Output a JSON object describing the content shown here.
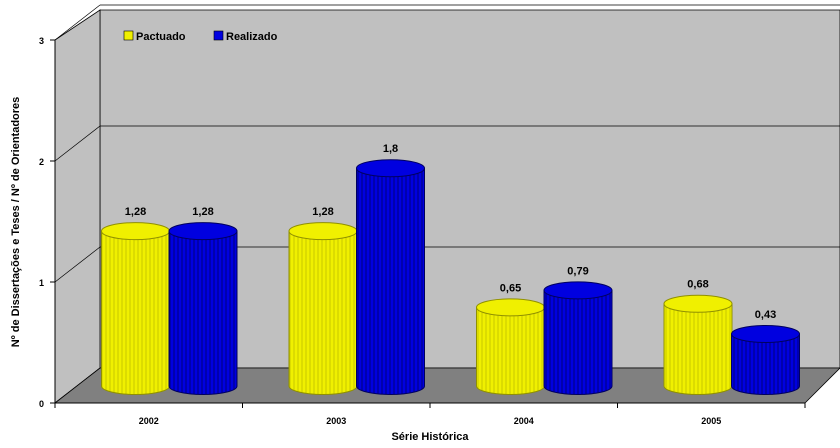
{
  "chart_data": {
    "type": "bar",
    "style": "3d-cylinder",
    "categories": [
      "2002",
      "2003",
      "2004",
      "2005"
    ],
    "series": [
      {
        "name": "Pactuado",
        "values": [
          1.28,
          1.28,
          0.65,
          0.68
        ],
        "labels": [
          "1,28",
          "1,28",
          "0,65",
          "0,68"
        ],
        "color": "#f0f000"
      },
      {
        "name": "Realizado",
        "values": [
          1.28,
          1.8,
          0.79,
          0.43
        ],
        "labels": [
          "1,28",
          "1,8",
          "0,79",
          "0,43"
        ],
        "color": "#0000e0"
      }
    ],
    "xlabel": "Série Histórica",
    "ylabel": "Nº de Dissertações e Teses / Nº de Orientadores",
    "ylim": [
      0,
      3
    ],
    "yticks": [
      "0",
      "1",
      "2",
      "3"
    ],
    "grid": true,
    "legend_position": "top-left",
    "colors": {
      "wall": "#c0c0c0",
      "floor": "#808080"
    }
  }
}
